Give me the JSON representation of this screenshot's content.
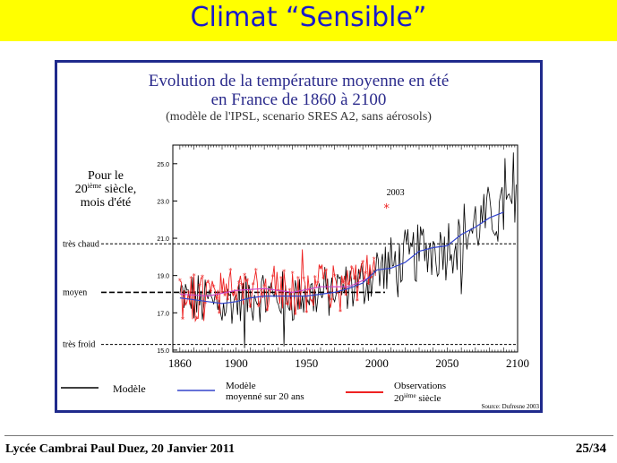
{
  "slide": {
    "title": "Climat “Sensible”",
    "footer_left": "Lycée Cambrai Paul Duez, 20 Janvier 2011",
    "page": "25/34"
  },
  "chart_data": {
    "type": "line",
    "title": "Evolution de la température moyenne en été",
    "subtitle": "en France de 1860 à 2100",
    "caption": "(modèle de l'IPSL, scenario SRES A2, sans aérosols)",
    "side_label": [
      "Pour le",
      "20ième siècle,",
      "mois d'été"
    ],
    "xlim": [
      1855,
      2100
    ],
    "ylim": [
      14.9,
      26.0
    ],
    "x_ticks": [
      1860,
      1900,
      1950,
      2000,
      2050,
      2100
    ],
    "y_ticks": [
      15.0,
      17.0,
      19.0,
      21.0,
      23.0,
      25.0
    ],
    "reference_lines": [
      {
        "label": "très chaud",
        "value": 20.7
      },
      {
        "label": "moyen",
        "value": 18.1
      },
      {
        "label": "très froid",
        "value": 15.3
      }
    ],
    "annotation": {
      "label": "2003",
      "x": 2003,
      "y": 22.6
    },
    "legend": {
      "model": "Modèle",
      "mean": [
        "Modèle",
        "moyenné sur 20 ans"
      ],
      "obs": [
        "Observations",
        "20ième siècle"
      ]
    },
    "source": "Source: Dufresne 2003",
    "colors": {
      "model": "#000000",
      "mean": "#3344cc",
      "obs": "#ee2222",
      "mean_obs": "#cc44cc",
      "title": "#2b2b8c",
      "frame": "#1f2a8c"
    },
    "series": [
      {
        "name": "Modèle moyenné sur 20 ans",
        "points": [
          [
            1860,
            17.8
          ],
          [
            1870,
            17.7
          ],
          [
            1880,
            17.6
          ],
          [
            1890,
            17.5
          ],
          [
            1900,
            17.6
          ],
          [
            1910,
            17.8
          ],
          [
            1920,
            17.9
          ],
          [
            1930,
            17.9
          ],
          [
            1940,
            17.9
          ],
          [
            1950,
            17.9
          ],
          [
            1960,
            18.0
          ],
          [
            1970,
            18.1
          ],
          [
            1980,
            18.3
          ],
          [
            1990,
            18.6
          ],
          [
            2000,
            19.3
          ],
          [
            2010,
            19.4
          ],
          [
            2020,
            19.7
          ],
          [
            2030,
            20.3
          ],
          [
            2040,
            20.5
          ],
          [
            2050,
            20.6
          ],
          [
            2060,
            21.2
          ],
          [
            2070,
            21.6
          ],
          [
            2080,
            22.1
          ],
          [
            2090,
            22.4
          ]
        ]
      },
      {
        "name": "Observations 20ième siècle (moyenne)",
        "points": [
          [
            1860,
            18.0
          ],
          [
            1880,
            17.9
          ],
          [
            1900,
            18.2
          ],
          [
            1920,
            18.3
          ],
          [
            1940,
            18.1
          ],
          [
            1960,
            18.4
          ],
          [
            1980,
            18.4
          ],
          [
            1995,
            18.9
          ]
        ]
      }
    ]
  }
}
